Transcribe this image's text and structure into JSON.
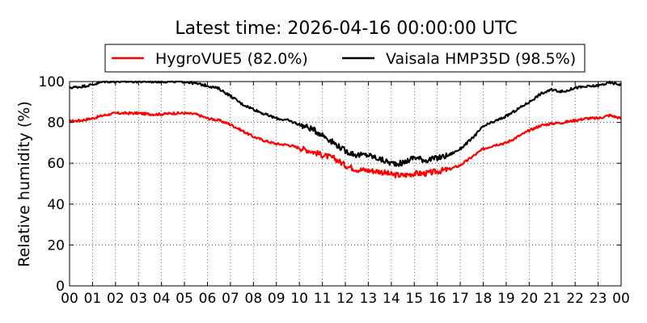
{
  "chart_data": {
    "type": "line",
    "title": "Latest time: 2026-04-16 00:00:00 UTC",
    "xlabel": "",
    "ylabel": "Relative humidity (%)",
    "xlim": [
      0,
      24
    ],
    "ylim": [
      0,
      100
    ],
    "x_tick_labels": [
      "00",
      "01",
      "02",
      "03",
      "04",
      "05",
      "06",
      "07",
      "08",
      "09",
      "10",
      "11",
      "12",
      "13",
      "14",
      "15",
      "16",
      "17",
      "18",
      "19",
      "20",
      "21",
      "22",
      "23",
      "00"
    ],
    "y_tick_labels": [
      "0",
      "20",
      "40",
      "60",
      "80",
      "100"
    ],
    "y_ticks": [
      0,
      20,
      40,
      60,
      80,
      100
    ],
    "grid": true,
    "legend_position": "top-center",
    "series": [
      {
        "name": "HygroVUE5 (82.0%)",
        "color": "#ff0000",
        "x": [
          0,
          0.5,
          1,
          1.5,
          2,
          2.5,
          3,
          3.5,
          4,
          4.5,
          5,
          5.5,
          6,
          6.5,
          7,
          7.5,
          8,
          8.5,
          9,
          9.5,
          10,
          10.5,
          11,
          11.5,
          12,
          12.5,
          13,
          13.5,
          14,
          14.5,
          15,
          15.5,
          16,
          16.5,
          17,
          17.5,
          18,
          18.5,
          19,
          19.5,
          20,
          20.5,
          21,
          21.5,
          22,
          22.5,
          23,
          23.5,
          24
        ],
        "values": [
          80.5,
          81,
          82,
          83.5,
          84.5,
          84.5,
          84.5,
          84,
          84,
          84.5,
          84.5,
          84,
          82,
          81,
          79,
          76,
          73,
          71,
          69.5,
          69,
          67.5,
          66,
          64,
          62.5,
          59,
          57,
          56.5,
          56,
          54.5,
          54,
          55,
          55,
          56,
          57,
          59,
          63,
          67,
          69,
          70,
          73,
          76,
          78.5,
          79.5,
          80,
          81,
          82,
          82,
          83.5,
          82
        ]
      },
      {
        "name": "Vaisala HMP35D (98.5%)",
        "color": "#000000",
        "x": [
          0,
          0.5,
          1,
          1.5,
          2,
          2.5,
          3,
          3.5,
          4,
          4.5,
          5,
          5.5,
          6,
          6.5,
          7,
          7.5,
          8,
          8.5,
          9,
          9.5,
          10,
          10.5,
          11,
          11.5,
          12,
          12.5,
          13,
          13.5,
          14,
          14.5,
          15,
          15.5,
          16,
          16.5,
          17,
          17.5,
          18,
          18.5,
          19,
          19.5,
          20,
          20.5,
          21,
          21.5,
          22,
          22.5,
          23,
          23.5,
          24
        ],
        "values": [
          97,
          97.5,
          98.5,
          100,
          100,
          100,
          100,
          100,
          100,
          100,
          100,
          99,
          98,
          96.5,
          93,
          89,
          86.5,
          84,
          82,
          81,
          79,
          77,
          74,
          70,
          66,
          64,
          64,
          62,
          60,
          60,
          63,
          61.5,
          62.5,
          64,
          67,
          72,
          78,
          80.5,
          83,
          86.5,
          90,
          94,
          96,
          95,
          97,
          97.5,
          98,
          99.5,
          98.5
        ]
      }
    ]
  }
}
